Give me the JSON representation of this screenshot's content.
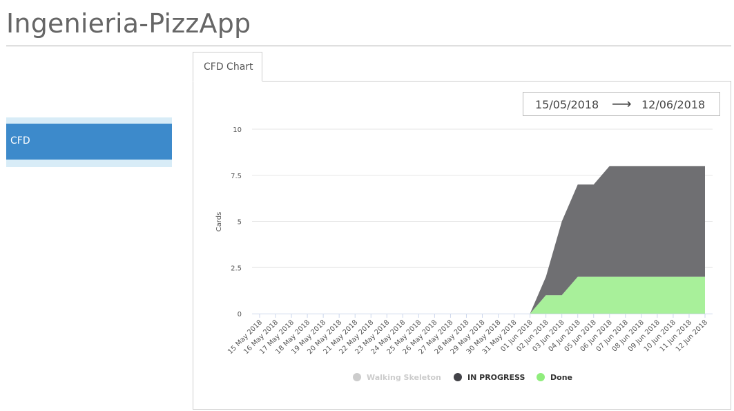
{
  "app": {
    "title": "Ingenieria-PizzApp"
  },
  "sidebar": {
    "items": [
      {
        "label": "CFD"
      }
    ]
  },
  "tabs": [
    {
      "label": "CFD Chart"
    }
  ],
  "date_range": {
    "from": "15/05/2018",
    "arrow": "⟶",
    "to": "12/06/2018"
  },
  "chart_data": {
    "type": "area",
    "ylabel": "Cards",
    "ylim": [
      0,
      10
    ],
    "yticks": [
      "0",
      "2.5",
      "5",
      "7.5",
      "10"
    ],
    "ytick_values": [
      0,
      2.5,
      5,
      7.5,
      10
    ],
    "categories": [
      "15 May 2018",
      "16 May 2018",
      "17 May 2018",
      "18 May 2018",
      "19 May 2018",
      "20 May 2018",
      "21 May 2018",
      "22 May 2018",
      "23 May 2018",
      "24 May 2018",
      "25 May 2018",
      "26 May 2018",
      "27 May 2018",
      "28 May 2018",
      "29 May 2018",
      "30 May 2018",
      "31 May 2018",
      "01 Jun 2018",
      "02 Jun 2018",
      "03 Jun 2018",
      "04 Jun 2018",
      "05 Jun 2018",
      "06 Jun 2018",
      "07 Jun 2018",
      "08 Jun 2018",
      "09 Jun 2018",
      "10 Jun 2018",
      "11 Jun 2018",
      "12 Jun 2018"
    ],
    "stacked": true,
    "series": [
      {
        "name": "Done",
        "color": "#a8f09a",
        "values": [
          0,
          0,
          0,
          0,
          0,
          0,
          0,
          0,
          0,
          0,
          0,
          0,
          0,
          0,
          0,
          0,
          0,
          0,
          1,
          1,
          2,
          2,
          2,
          2,
          2,
          2,
          2,
          2,
          2
        ]
      },
      {
        "name": "IN PROGRESS",
        "color": "#6f6f72",
        "values": [
          0,
          0,
          0,
          0,
          0,
          0,
          0,
          0,
          0,
          0,
          0,
          0,
          0,
          0,
          0,
          0,
          0,
          0,
          1,
          4,
          5,
          5,
          6,
          6,
          6,
          6,
          6,
          6,
          6
        ]
      },
      {
        "name": "Walking Skeleton",
        "color": "#c8c8c8",
        "values": [
          0,
          0,
          0,
          0,
          0,
          0,
          0,
          0,
          0,
          0,
          0,
          0,
          0,
          0,
          0,
          0,
          0,
          0,
          0,
          0,
          0,
          0,
          0,
          0,
          0,
          0,
          0,
          0,
          0
        ]
      }
    ],
    "legend": [
      {
        "name": "Walking Skeleton",
        "marker_color": "#cccccc",
        "text_color": "#cccccc"
      },
      {
        "name": "IN PROGRESS",
        "marker_color": "#434348",
        "text_color": "#333333"
      },
      {
        "name": "Done",
        "marker_color": "#90ed7d",
        "text_color": "#333333"
      }
    ]
  }
}
